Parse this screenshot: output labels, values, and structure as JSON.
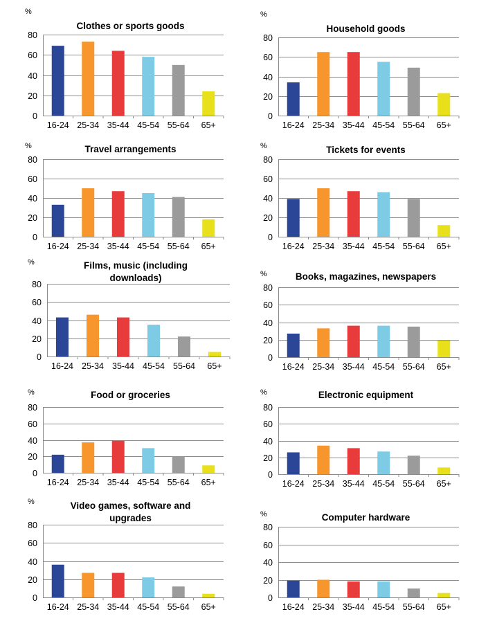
{
  "colors": [
    "#2b4696",
    "#f7962d",
    "#e83c3c",
    "#7ecbe5",
    "#9b9b9b",
    "#e8e01a"
  ],
  "chart_data": [
    {
      "type": "bar",
      "title": "Clothes or sports goods",
      "ylabel": "%",
      "ylim": [
        0,
        80
      ],
      "yticks": [
        0,
        20,
        40,
        60,
        80
      ],
      "categories": [
        "16-24",
        "25-34",
        "35-44",
        "45-54",
        "55-64",
        "65+"
      ],
      "values": [
        69,
        73,
        64,
        58,
        50,
        24
      ]
    },
    {
      "type": "bar",
      "title": "Household goods",
      "ylabel": "%",
      "ylim": [
        0,
        80
      ],
      "yticks": [
        0,
        20,
        40,
        60,
        80
      ],
      "categories": [
        "16-24",
        "25-34",
        "35-44",
        "45-54",
        "55-64",
        "65+"
      ],
      "values": [
        34,
        65,
        65,
        55,
        49,
        23
      ]
    },
    {
      "type": "bar",
      "title": "Travel arrangements",
      "ylabel": "%",
      "ylim": [
        0,
        80
      ],
      "yticks": [
        0,
        20,
        40,
        60,
        80
      ],
      "categories": [
        "16-24",
        "25-34",
        "35-44",
        "45-54",
        "55-64",
        "65+"
      ],
      "values": [
        33,
        50,
        47,
        45,
        41,
        18
      ]
    },
    {
      "type": "bar",
      "title": "Tickets for events",
      "ylabel": "%",
      "ylim": [
        0,
        80
      ],
      "yticks": [
        0,
        20,
        40,
        60,
        80
      ],
      "categories": [
        "16-24",
        "25-34",
        "35-44",
        "45-54",
        "55-64",
        "65+"
      ],
      "values": [
        39,
        50,
        47,
        46,
        39,
        12
      ]
    },
    {
      "type": "bar",
      "title": [
        "Films, music (including",
        "downloads)"
      ],
      "ylabel": "%",
      "ylim": [
        0,
        80
      ],
      "yticks": [
        0,
        20,
        40,
        60,
        80
      ],
      "categories": [
        "16-24",
        "25-34",
        "35-44",
        "45-54",
        "55-64",
        "65+"
      ],
      "values": [
        43,
        46,
        43,
        35,
        22,
        5
      ]
    },
    {
      "type": "bar",
      "title": "Books, magazines, newspapers",
      "ylabel": "%",
      "ylim": [
        0,
        80
      ],
      "yticks": [
        0,
        20,
        40,
        60,
        80
      ],
      "categories": [
        "16-24",
        "25-34",
        "35-44",
        "45-54",
        "55-64",
        "65+"
      ],
      "values": [
        27,
        33,
        36,
        36,
        35,
        19
      ]
    },
    {
      "type": "bar",
      "title": "Food or groceries",
      "ylabel": "%",
      "ylim": [
        0,
        80
      ],
      "yticks": [
        0,
        20,
        40,
        60,
        80
      ],
      "categories": [
        "16-24",
        "25-34",
        "35-44",
        "45-54",
        "55-64",
        "65+"
      ],
      "values": [
        22,
        37,
        39,
        30,
        20,
        9
      ]
    },
    {
      "type": "bar",
      "title": "Electronic equipment",
      "ylabel": "%",
      "ylim": [
        0,
        80
      ],
      "yticks": [
        0,
        20,
        40,
        60,
        80
      ],
      "categories": [
        "16-24",
        "25-34",
        "35-44",
        "45-54",
        "55-64",
        "65+"
      ],
      "values": [
        26,
        34,
        31,
        27,
        22,
        8
      ]
    },
    {
      "type": "bar",
      "title": [
        "Video games, software and",
        "upgrades"
      ],
      "ylabel": "%",
      "ylim": [
        0,
        80
      ],
      "yticks": [
        0,
        20,
        40,
        60,
        80
      ],
      "categories": [
        "16-24",
        "25-34",
        "35-44",
        "45-54",
        "55-64",
        "65+"
      ],
      "values": [
        36,
        27,
        27,
        22,
        12,
        4
      ]
    },
    {
      "type": "bar",
      "title": "Computer hardware",
      "ylabel": "%",
      "ylim": [
        0,
        80
      ],
      "yticks": [
        0,
        20,
        40,
        60,
        80
      ],
      "categories": [
        "16-24",
        "25-34",
        "35-44",
        "45-54",
        "55-64",
        "65+"
      ],
      "values": [
        19,
        20,
        18,
        18,
        10,
        5
      ]
    }
  ]
}
